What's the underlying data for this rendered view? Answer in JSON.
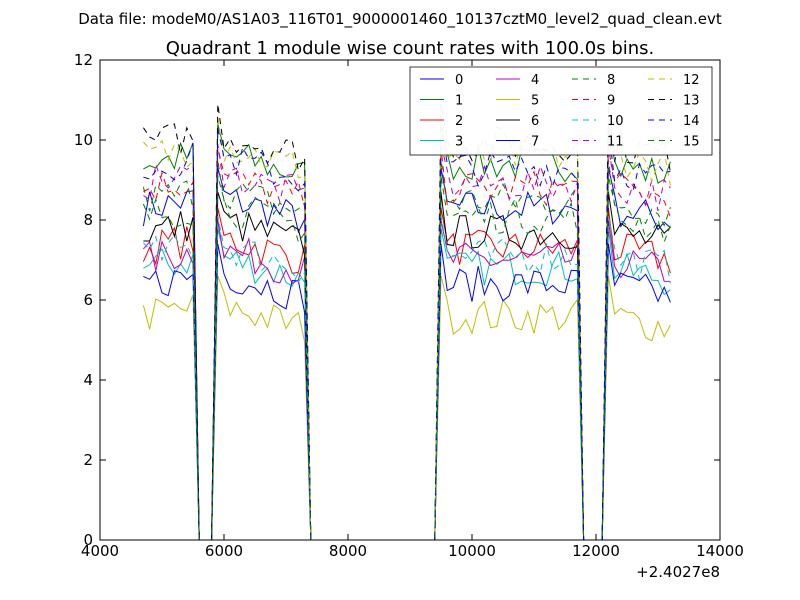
{
  "suptitle": "Data file: modeM0/AS1A03_116T01_9000001460_10137cztM0_level2_quad_clean.evt",
  "chart_data": {
    "type": "line",
    "title": "Quadrant 1 module wise count rates with 100.0s bins.",
    "xlabel": "",
    "ylabel": "",
    "xlim": [
      4000,
      14000
    ],
    "ylim": [
      0,
      12
    ],
    "x_offset_label": "+2.4027e8",
    "x_ticks": [
      "4000",
      "6000",
      "8000",
      "10000",
      "12000",
      "14000"
    ],
    "y_ticks": [
      "0",
      "2",
      "4",
      "6",
      "8",
      "10",
      "12"
    ],
    "grid": false,
    "legend_position": "top-right",
    "segments": [
      [
        4700,
        5500
      ],
      [
        5900,
        7300
      ],
      [
        9500,
        11700
      ],
      [
        12200,
        13200
      ]
    ],
    "series": [
      {
        "name": "0",
        "color": "#0000ff",
        "dash": "solid",
        "level": 8.3
      },
      {
        "name": "1",
        "color": "#008000",
        "dash": "solid",
        "level": 9.4
      },
      {
        "name": "2",
        "color": "#ff0000",
        "dash": "solid",
        "level": 7.3
      },
      {
        "name": "3",
        "color": "#00bfbf",
        "dash": "solid",
        "level": 6.8
      },
      {
        "name": "4",
        "color": "#bf00bf",
        "dash": "solid",
        "level": 7.0
      },
      {
        "name": "5",
        "color": "#bfbf00",
        "dash": "solid",
        "level": 5.6
      },
      {
        "name": "6",
        "color": "#000000",
        "dash": "solid",
        "level": 7.7
      },
      {
        "name": "7",
        "color": "#0000ff",
        "dash": "solid",
        "level": 6.4
      },
      {
        "name": "8",
        "color": "#008000",
        "dash": "dashed",
        "level": 8.5
      },
      {
        "name": "9",
        "color": "#ff0000",
        "dash": "dashed",
        "level": 8.8
      },
      {
        "name": "10",
        "color": "#00bfbf",
        "dash": "dashed",
        "level": 7.1
      },
      {
        "name": "11",
        "color": "#bf00bf",
        "dash": "dashed",
        "level": 8.9
      },
      {
        "name": "12",
        "color": "#bfbf00",
        "dash": "dashed",
        "level": 9.6
      },
      {
        "name": "13",
        "color": "#000000",
        "dash": "dashed",
        "level": 9.9
      },
      {
        "name": "14",
        "color": "#0000ff",
        "dash": "dashed",
        "level": 9.3
      },
      {
        "name": "15",
        "color": "#008000",
        "dash": "dashed",
        "level": 8.1
      }
    ]
  }
}
